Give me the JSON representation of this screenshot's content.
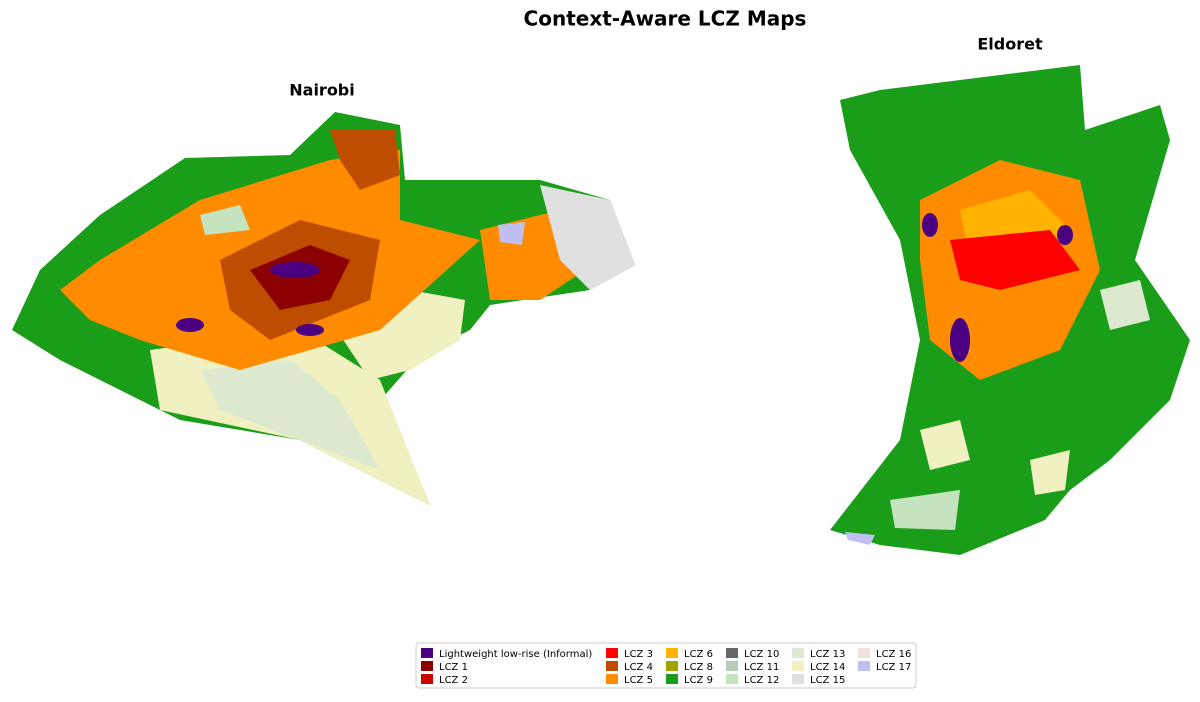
{
  "title": "Context-Aware LCZ Maps",
  "maps": [
    {
      "name": "Nairobi"
    },
    {
      "name": "Eldoret"
    }
  ],
  "legend": [
    {
      "label": "Lightweight low-rise (Informal)",
      "color": "#4b0082"
    },
    {
      "label": "LCZ 1",
      "color": "#8b0000"
    },
    {
      "label": "LCZ 2",
      "color": "#cc0000"
    },
    {
      "label": "LCZ 3",
      "color": "#ff0000"
    },
    {
      "label": "LCZ 4",
      "color": "#bf4d00"
    },
    {
      "label": "LCZ 5",
      "color": "#ff8c00"
    },
    {
      "label": "LCZ 6",
      "color": "#ffb300"
    },
    {
      "label": "LCZ 8",
      "color": "#a3a300"
    },
    {
      "label": "LCZ 9",
      "color": "#1a9e1a"
    },
    {
      "label": "LCZ 10",
      "color": "#666666"
    },
    {
      "label": "LCZ 11",
      "color": "#b8ccb8"
    },
    {
      "label": "LCZ 12",
      "color": "#c5e3bf"
    },
    {
      "label": "LCZ 13",
      "color": "#dde9cf"
    },
    {
      "label": "LCZ 14",
      "color": "#f0f0c0"
    },
    {
      "label": "LCZ 15",
      "color": "#e0e0e0"
    },
    {
      "label": "LCZ 16",
      "color": "#f0e2d8"
    },
    {
      "label": "LCZ 17",
      "color": "#c0c0f0"
    }
  ]
}
